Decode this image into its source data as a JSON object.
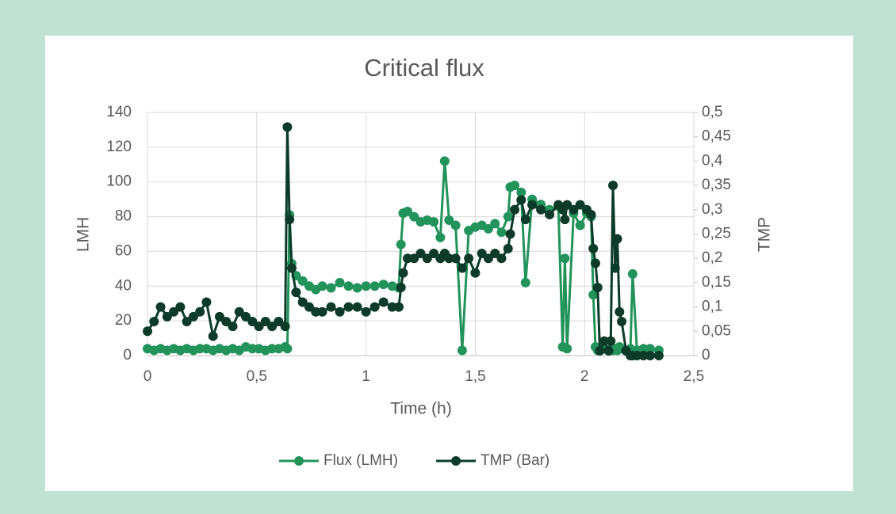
{
  "chart_data": {
    "type": "line",
    "title": "Critical flux",
    "x_label": "Time (h)",
    "y_label": "LMH",
    "y2_label": "TMP",
    "x": [
      0,
      0.03,
      0.06,
      0.09,
      0.12,
      0.15,
      0.18,
      0.21,
      0.24,
      0.27,
      0.3,
      0.33,
      0.36,
      0.39,
      0.42,
      0.45,
      0.48,
      0.51,
      0.54,
      0.57,
      0.6,
      0.63,
      0.64,
      0.65,
      0.66,
      0.68,
      0.71,
      0.74,
      0.77,
      0.8,
      0.84,
      0.88,
      0.92,
      0.96,
      1.0,
      1.04,
      1.08,
      1.12,
      1.15,
      1.16,
      1.17,
      1.19,
      1.22,
      1.25,
      1.28,
      1.31,
      1.34,
      1.36,
      1.38,
      1.41,
      1.44,
      1.47,
      1.5,
      1.53,
      1.56,
      1.59,
      1.62,
      1.65,
      1.66,
      1.68,
      1.71,
      1.73,
      1.76,
      1.8,
      1.84,
      1.88,
      1.9,
      1.91,
      1.92,
      1.95,
      1.98,
      2.01,
      2.03,
      2.04,
      2.05,
      2.06,
      2.07,
      2.09,
      2.11,
      2.12,
      2.13,
      2.14,
      2.15,
      2.16,
      2.17,
      2.19,
      2.21,
      2.22,
      2.24,
      2.27,
      2.3,
      2.34
    ],
    "series": [
      {
        "name": "Flux (LMH)",
        "color": "#22935a",
        "values": [
          4,
          3,
          4,
          3,
          4,
          3,
          4,
          3,
          4,
          4,
          3,
          4,
          3,
          4,
          3,
          5,
          4,
          4,
          3,
          4,
          4,
          5,
          4,
          81,
          53,
          46,
          43,
          40,
          38,
          40,
          39,
          42,
          40,
          39,
          40,
          40,
          41,
          40,
          39,
          64,
          82,
          83,
          80,
          77,
          78,
          77,
          68,
          112,
          78,
          75,
          3,
          72,
          74,
          75,
          73,
          76,
          71,
          80,
          97,
          98,
          94,
          42,
          90,
          87,
          84,
          86,
          5,
          56,
          4,
          82,
          75,
          82,
          80,
          35,
          5,
          3,
          3,
          4,
          3,
          3,
          3,
          4,
          3,
          5,
          4,
          3,
          4,
          47,
          3,
          4,
          4,
          3
        ]
      },
      {
        "name": "TMP (Bar)",
        "color": "#0c3b29",
        "axis": "y2",
        "values": [
          0.05,
          0.07,
          0.1,
          0.08,
          0.09,
          0.1,
          0.07,
          0.08,
          0.09,
          0.11,
          0.04,
          0.08,
          0.07,
          0.06,
          0.09,
          0.08,
          0.07,
          0.06,
          0.07,
          0.06,
          0.07,
          0.06,
          0.47,
          0.28,
          0.18,
          0.13,
          0.11,
          0.1,
          0.09,
          0.09,
          0.1,
          0.09,
          0.1,
          0.1,
          0.09,
          0.1,
          0.11,
          0.1,
          0.1,
          0.14,
          0.17,
          0.2,
          0.2,
          0.21,
          0.2,
          0.21,
          0.2,
          0.21,
          0.2,
          0.2,
          0.18,
          0.2,
          0.17,
          0.21,
          0.2,
          0.21,
          0.2,
          0.22,
          0.25,
          0.3,
          0.32,
          0.28,
          0.31,
          0.3,
          0.29,
          0.31,
          0.3,
          0.28,
          0.31,
          0.3,
          0.31,
          0.3,
          0.29,
          0.22,
          0.19,
          0.14,
          0.01,
          0.03,
          0.01,
          0.03,
          0.35,
          0.18,
          0.24,
          0.09,
          0.07,
          0.01,
          0,
          0,
          0,
          0,
          0,
          0
        ]
      }
    ],
    "xlim": [
      0,
      2.5
    ],
    "xticks": [
      0,
      {
        "value": 0.5,
        "label": "0,5"
      },
      1,
      {
        "value": 1.5,
        "label": "1,5"
      },
      2,
      {
        "value": 2.5,
        "label": "2,5"
      }
    ],
    "ylim": [
      0,
      140
    ],
    "yticks": [
      0,
      20,
      40,
      60,
      80,
      100,
      120,
      140
    ],
    "y2lim": [
      0,
      0.5
    ],
    "y2ticks": [
      0,
      {
        "value": 0.05,
        "label": "0,05"
      },
      {
        "value": 0.1,
        "label": "0,1"
      },
      {
        "value": 0.15,
        "label": "0,15"
      },
      {
        "value": 0.2,
        "label": "0,2"
      },
      {
        "value": 0.25,
        "label": "0,25"
      },
      {
        "value": 0.3,
        "label": "0,3"
      },
      {
        "value": 0.35,
        "label": "0,35"
      },
      {
        "value": 0.4,
        "label": "0,4"
      },
      {
        "value": 0.45,
        "label": "0,45"
      },
      {
        "value": 0.5,
        "label": "0,5"
      }
    ],
    "grid": true,
    "legend": "bottom"
  }
}
